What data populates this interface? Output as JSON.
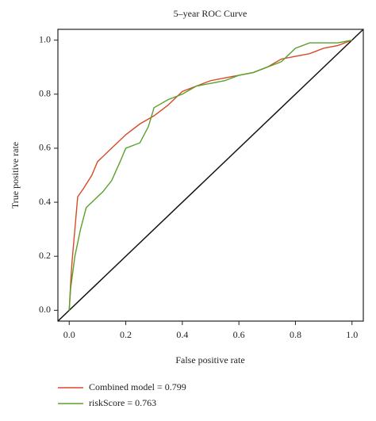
{
  "chart_data": {
    "type": "line",
    "title": "5–year ROC Curve",
    "x_label": "False positive rate",
    "y_label": "True positive rate",
    "xlim": [
      -0.04,
      1.04
    ],
    "ylim": [
      -0.04,
      1.04
    ],
    "xticks": [
      {
        "value": 0,
        "label": "0.0"
      },
      0.2,
      0.4,
      0.6,
      0.8,
      {
        "value": 1,
        "label": "1.0"
      }
    ],
    "yticks": [
      {
        "value": 0,
        "label": "0.0"
      },
      0.2,
      0.4,
      0.6,
      0.8,
      {
        "value": 1,
        "label": "1.0"
      }
    ],
    "legend": "bottom-left",
    "series": [
      {
        "name": "Combined model = 0.799",
        "color": "#d64a2a",
        "x": [
          0,
          0.005,
          0.01,
          0.02,
          0.03,
          0.05,
          0.08,
          0.1,
          0.15,
          0.2,
          0.25,
          0.3,
          0.35,
          0.4,
          0.45,
          0.5,
          0.55,
          0.6,
          0.65,
          0.7,
          0.75,
          0.8,
          0.85,
          0.9,
          0.95,
          1
        ],
        "values": [
          0,
          0.1,
          0.18,
          0.3,
          0.42,
          0.45,
          0.5,
          0.55,
          0.6,
          0.65,
          0.69,
          0.72,
          0.76,
          0.81,
          0.83,
          0.85,
          0.86,
          0.87,
          0.88,
          0.9,
          0.93,
          0.94,
          0.95,
          0.97,
          0.98,
          1
        ]
      },
      {
        "name": "riskScore = 0.763",
        "color": "#5aa02c",
        "x": [
          0,
          0.005,
          0.01,
          0.02,
          0.04,
          0.06,
          0.08,
          0.1,
          0.12,
          0.15,
          0.18,
          0.2,
          0.25,
          0.28,
          0.3,
          0.35,
          0.4,
          0.45,
          0.5,
          0.55,
          0.6,
          0.65,
          0.7,
          0.75,
          0.8,
          0.85,
          0.9,
          0.95,
          1
        ],
        "values": [
          0,
          0.08,
          0.12,
          0.2,
          0.3,
          0.38,
          0.4,
          0.42,
          0.44,
          0.48,
          0.55,
          0.6,
          0.62,
          0.68,
          0.75,
          0.78,
          0.8,
          0.83,
          0.84,
          0.85,
          0.87,
          0.88,
          0.9,
          0.92,
          0.97,
          0.99,
          0.99,
          0.99,
          1
        ]
      }
    ]
  }
}
